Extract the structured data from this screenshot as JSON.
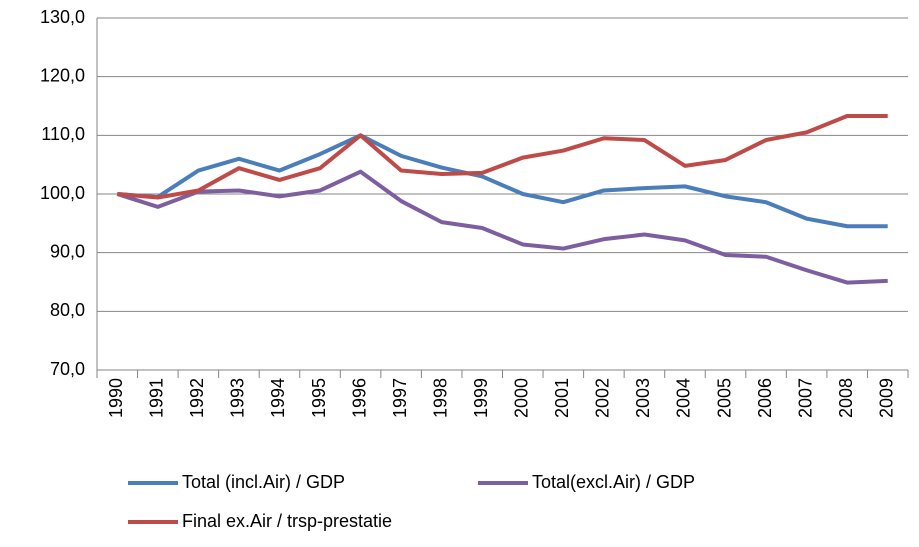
{
  "chart_data": {
    "type": "line",
    "categories": [
      "1990",
      "1991",
      "1992",
      "1993",
      "1994",
      "1995",
      "1996",
      "1997",
      "1998",
      "1999",
      "2000",
      "2001",
      "2002",
      "2003",
      "2004",
      "2005",
      "2006",
      "2007",
      "2008",
      "2009"
    ],
    "series": [
      {
        "name": "Total (incl.Air) / GDP",
        "color": "#4a7ebb",
        "values": [
          100,
          99.5,
          104,
          106,
          104,
          106.8,
          110,
          106.5,
          104.5,
          103,
          100,
          98.6,
          100.6,
          101,
          101.3,
          99.6,
          98.6,
          95.8,
          94.5,
          94.5
        ]
      },
      {
        "name": "Total(excl.Air) / GDP",
        "color": "#7d5fa0",
        "values": [
          100,
          97.8,
          100.4,
          100.6,
          99.6,
          100.6,
          103.8,
          98.8,
          95.2,
          94.2,
          91.4,
          90.7,
          92.3,
          93.1,
          92.1,
          89.6,
          89.3,
          87,
          84.9,
          85.2
        ]
      },
      {
        "name": "Final ex.Air / trsp-prestatie",
        "color": "#be4b48",
        "values": [
          100,
          99.4,
          100.6,
          104.4,
          102.4,
          104.4,
          110,
          104,
          103.4,
          103.6,
          106.2,
          107.4,
          109.5,
          109.2,
          104.8,
          105.8,
          109.2,
          110.5,
          113.3,
          113.3
        ]
      }
    ],
    "ylim": [
      70,
      130
    ],
    "yticks": [
      {
        "value": 70,
        "label": "70,0"
      },
      {
        "value": 80,
        "label": "80,0"
      },
      {
        "value": 90,
        "label": "90,0"
      },
      {
        "value": 100,
        "label": "100,0"
      },
      {
        "value": 110,
        "label": "110,0"
      },
      {
        "value": 120,
        "label": "120,0"
      },
      {
        "value": 130,
        "label": "130,0"
      }
    ],
    "grid": true
  }
}
